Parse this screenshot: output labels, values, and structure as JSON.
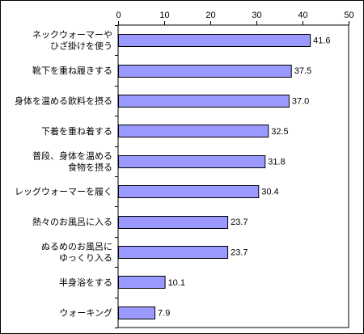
{
  "chart_data": {
    "type": "bar",
    "orientation": "horizontal",
    "title": "",
    "xlabel": "",
    "ylabel": "",
    "xlim": [
      0,
      50
    ],
    "ticks": [
      0,
      10,
      20,
      30,
      40,
      50
    ],
    "grid": false,
    "legend": "none",
    "bar_color": "#9999FF",
    "bar_stroke": "#000000",
    "categories": [
      [
        "ネックウォーマーや",
        "ひざ掛けを使う"
      ],
      [
        "靴下を重ね履きする"
      ],
      [
        "身体を温める飲料を摂る"
      ],
      [
        "下着を重ね着する"
      ],
      [
        "普段、身体を温める",
        "食物を摂る"
      ],
      [
        "レッグウォーマーを履く"
      ],
      [
        "熱々のお風呂に入る"
      ],
      [
        "ぬるめのお風呂に",
        "ゆっくり入る"
      ],
      [
        "半身浴をする"
      ],
      [
        "ウォーキング"
      ]
    ],
    "values": [
      41.6,
      37.5,
      37.0,
      32.5,
      31.8,
      30.4,
      23.7,
      23.7,
      10.1,
      7.9
    ],
    "value_labels": [
      "41.6",
      "37.5",
      "37.0",
      "32.5",
      "31.8",
      "30.4",
      "23.7",
      "23.7",
      "10.1",
      "7.9"
    ]
  }
}
